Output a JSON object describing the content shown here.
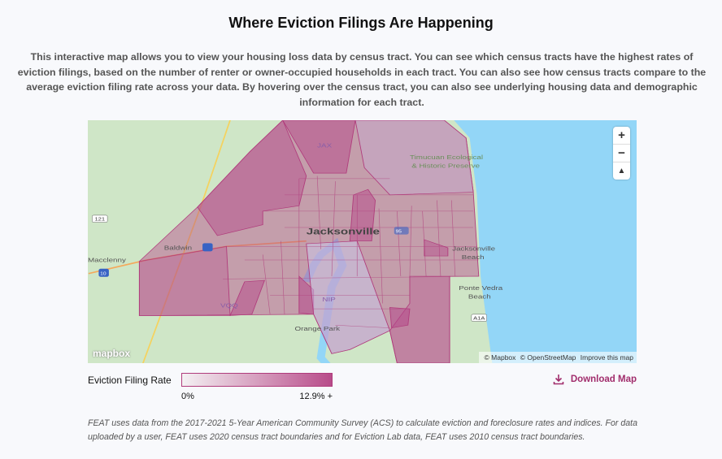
{
  "header": {
    "title": "Where Eviction Filings Are Happening"
  },
  "intro": "This interactive map allows you to view your housing loss data by census tract. You can see which census tracts have the highest rates of eviction filings, based on the number of renter or owner-occupied households in each tract. You can also see how census tracts compare to the average eviction filing rate across your data. By hovering over the census tract, you can also see underlying housing data and demographic information for each tract.",
  "map": {
    "labels": {
      "city": "Jacksonville",
      "baldwin": "Baldwin",
      "macclenny": "Macclenny",
      "orange_park": "Orange Park",
      "ponte_vedra": "Ponte Vedra",
      "ponte_vedra2": "Beach",
      "jax_beach": "Jacksonville",
      "jax_beach2": "Beach",
      "preserve": "Timucuan Ecological",
      "preserve2": "& Historic Preserve",
      "jax": "JAX",
      "nip": "NIP",
      "vqq": "VQQ",
      "r121": "121",
      "a1a": "A1A",
      "i10": "10",
      "i95": "95"
    },
    "controls": {
      "zoom_in": "+",
      "zoom_out": "−",
      "compass": "▲"
    },
    "logo": "mapbox",
    "attribution": {
      "mapbox": "© Mapbox",
      "osm": "© OpenStreetMap",
      "improve": "Improve this map"
    },
    "colors": {
      "fill": "#b5478a",
      "land": "#cfe6c7",
      "water": "#93d6f7"
    }
  },
  "legend": {
    "label": "Eviction Filing Rate",
    "min": "0%",
    "max": "12.9% +"
  },
  "download": {
    "label": "Download Map",
    "icon": "download-icon"
  },
  "footnote": "FEAT uses data from the 2017-2021 5-Year American Community Survey (ACS) to calculate eviction and foreclosure rates and indices. For data uploaded by a user, FEAT uses 2020 census tract boundaries and for Eviction Lab data, FEAT uses 2010 census tract boundaries."
}
